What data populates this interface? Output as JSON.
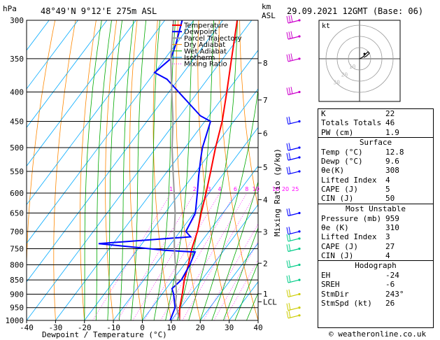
{
  "header": {
    "pressure_unit": "hPa",
    "location": "48°49'N  9°12'E  275m  ASL",
    "height_unit": "km",
    "height_unit2": "ASL",
    "datetime": "29.09.2021  12GMT  (Base: 06)"
  },
  "legend": [
    "Temperature",
    "Dewpoint",
    "Parcel Trajectory",
    "Dry Adiabat",
    "Wet Adiabat",
    "Isotherm",
    "Mixing Ratio"
  ],
  "colors": {
    "temperature": "#ff0000",
    "dewpoint": "#0000ff",
    "parcel": "#999999",
    "dry_adiabat": "#ff8800",
    "wet_adiabat": "#00aa00",
    "isotherm": "#00aaff",
    "mixing_ratio": "#ff00ff",
    "wind": "#00aaff"
  },
  "chart_data": {
    "type": "line",
    "title": "",
    "xlabel": "Dewpoint / Temperature (°C)",
    "ylabel": "hPa",
    "y2label": "Mixing Ratio (g/kg)",
    "xlim": [
      -40,
      40
    ],
    "ylim": [
      1000,
      300
    ],
    "y_scale": "log",
    "x_ticks": [
      -40,
      -30,
      -20,
      -10,
      0,
      10,
      20,
      30,
      40
    ],
    "p_ticks": [
      300,
      350,
      400,
      450,
      500,
      550,
      600,
      650,
      700,
      750,
      800,
      850,
      900,
      950,
      1000
    ],
    "km_ticks": [
      {
        "label": "8",
        "p": 356
      },
      {
        "label": "7",
        "p": 413
      },
      {
        "label": "6",
        "p": 472
      },
      {
        "label": "5",
        "p": 541
      },
      {
        "label": "4",
        "p": 616
      },
      {
        "label": "3",
        "p": 701
      },
      {
        "label": "2",
        "p": 795
      },
      {
        "label": "1",
        "p": 899
      },
      {
        "label": "LCL",
        "p": 928
      }
    ],
    "mixing_ratio_labels": [
      "1",
      "2",
      "3",
      "4",
      "6",
      "8",
      "10",
      "16",
      "20",
      "25"
    ],
    "series": [
      {
        "name": "Temperature",
        "points": [
          [
            1000,
            12.8
          ],
          [
            950,
            9.6
          ],
          [
            900,
            7.0
          ],
          [
            850,
            4.0
          ],
          [
            800,
            1.5
          ],
          [
            750,
            -1.5
          ],
          [
            700,
            -4.0
          ],
          [
            650,
            -7.5
          ],
          [
            600,
            -11.0
          ],
          [
            550,
            -15.0
          ],
          [
            500,
            -19.5
          ],
          [
            450,
            -24.0
          ],
          [
            400,
            -30.0
          ],
          [
            350,
            -37.0
          ],
          [
            300,
            -45.0
          ]
        ]
      },
      {
        "name": "Dewpoint",
        "points": [
          [
            1000,
            9.6
          ],
          [
            950,
            8.0
          ],
          [
            900,
            4.0
          ],
          [
            880,
            2.0
          ],
          [
            850,
            3.0
          ],
          [
            800,
            2.0
          ],
          [
            760,
            0.5
          ],
          [
            755,
            -10.0
          ],
          [
            735,
            -35.0
          ],
          [
            725,
            -20.0
          ],
          [
            715,
            -5.0
          ],
          [
            700,
            -8.0
          ],
          [
            650,
            -9.5
          ],
          [
            600,
            -14.0
          ],
          [
            560,
            -18.0
          ],
          [
            520,
            -22.0
          ],
          [
            500,
            -24.0
          ],
          [
            450,
            -28.0
          ],
          [
            440,
            -33.0
          ],
          [
            380,
            -54.0
          ],
          [
            370,
            -60.0
          ],
          [
            350,
            -58.0
          ],
          [
            330,
            -60.0
          ],
          [
            300,
            -64.0
          ]
        ]
      },
      {
        "name": "Parcel Trajectory",
        "points": [
          [
            1000,
            12.8
          ],
          [
            930,
            6.8
          ],
          [
            900,
            5.0
          ],
          [
            850,
            1.0
          ],
          [
            800,
            -3.0
          ],
          [
            750,
            -7.5
          ],
          [
            700,
            -12.0
          ],
          [
            650,
            -16.5
          ],
          [
            600,
            -22.0
          ],
          [
            550,
            -28.0
          ],
          [
            500,
            -34.5
          ],
          [
            450,
            -41.0
          ],
          [
            400,
            -49.0
          ],
          [
            350,
            -58.0
          ],
          [
            300,
            -67.0
          ]
        ]
      }
    ]
  },
  "hodograph": {
    "label": "kt",
    "rings": [
      "10",
      "20",
      "30"
    ]
  },
  "indices": {
    "basic": [
      {
        "label": "K",
        "value": "22"
      },
      {
        "label": "Totals Totals",
        "value": "46"
      },
      {
        "label": "PW (cm)",
        "value": "1.9"
      }
    ],
    "surface_title": "Surface",
    "surface": [
      {
        "label": "Temp (°C)",
        "value": "12.8"
      },
      {
        "label": "Dewp (°C)",
        "value": "9.6"
      },
      {
        "label": "θe(K)",
        "value": "308"
      },
      {
        "label": "Lifted Index",
        "value": "4"
      },
      {
        "label": "CAPE (J)",
        "value": "5"
      },
      {
        "label": "CIN (J)",
        "value": "50"
      }
    ],
    "unstable_title": "Most Unstable",
    "unstable": [
      {
        "label": "Pressure (mb)",
        "value": "959"
      },
      {
        "label": "θe (K)",
        "value": "310"
      },
      {
        "label": "Lifted Index",
        "value": "3"
      },
      {
        "label": "CAPE (J)",
        "value": "27"
      },
      {
        "label": "CIN (J)",
        "value": "4"
      }
    ],
    "hodo_title": "Hodograph",
    "hodo": [
      {
        "label": "EH",
        "value": "-24"
      },
      {
        "label": "SREH",
        "value": "-6"
      },
      {
        "label": "StmDir",
        "value": "243°"
      },
      {
        "label": "StmSpd (kt)",
        "value": "26"
      }
    ]
  },
  "footer": "© weatheronline.co.uk"
}
